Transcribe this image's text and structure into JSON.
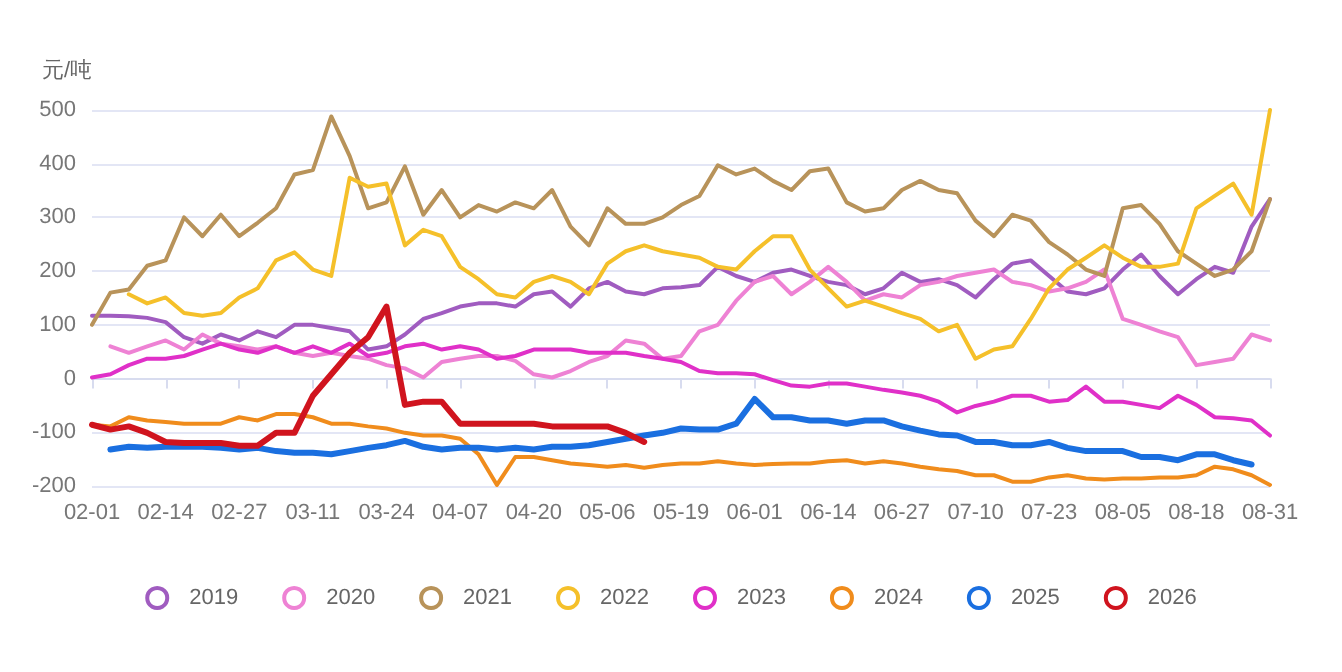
{
  "chart_data": {
    "type": "line",
    "ylabel": "元/吨",
    "ylim": [
      -200,
      500
    ],
    "yticks": [
      -200,
      -100,
      0,
      100,
      200,
      300,
      400,
      500
    ],
    "grid": "y",
    "legend": "bottom",
    "marker": "none",
    "line_style": "solid",
    "categories": [
      "02-01",
      null,
      null,
      null,
      "02-14",
      null,
      null,
      null,
      "02-27",
      null,
      null,
      null,
      "03-11",
      null,
      null,
      null,
      "03-24",
      null,
      null,
      null,
      "04-07",
      null,
      null,
      null,
      "04-20",
      null,
      null,
      null,
      "05-06",
      null,
      null,
      null,
      "05-19",
      null,
      null,
      null,
      "06-01",
      null,
      null,
      null,
      "06-14",
      null,
      null,
      null,
      "06-27",
      null,
      null,
      null,
      "07-10",
      null,
      null,
      null,
      "07-23",
      null,
      null,
      null,
      "08-05",
      null,
      null,
      null,
      "08-18",
      null,
      null,
      null,
      "08-31"
    ],
    "series": [
      {
        "name": "2019",
        "color": "#a05cc0",
        "values": [
          117,
          117,
          116,
          113,
          105,
          77,
          65,
          82,
          71,
          88,
          77,
          100,
          100,
          94,
          88,
          54,
          60,
          82,
          111,
          122,
          134,
          140,
          140,
          134,
          157,
          162,
          134,
          168,
          180,
          162,
          157,
          168,
          170,
          174,
          208,
          191,
          180,
          197,
          203,
          191,
          180,
          174,
          157,
          168,
          197,
          180,
          185,
          174,
          151,
          185,
          214,
          220,
          191,
          162,
          157,
          168,
          203,
          231,
          191,
          157,
          185,
          208,
          197,
          283,
          334
        ]
      },
      {
        "name": "2020",
        "color": "#ee82d4",
        "values": [
          null,
          60,
          48,
          60,
          71,
          54,
          82,
          65,
          60,
          54,
          60,
          48,
          42,
          48,
          42,
          37,
          25,
          19,
          2,
          31,
          37,
          42,
          42,
          33,
          8,
          2,
          14,
          31,
          42,
          71,
          65,
          37,
          42,
          88,
          100,
          145,
          180,
          191,
          157,
          180,
          208,
          180,
          145,
          157,
          151,
          174,
          180,
          191,
          197,
          203,
          180,
          174,
          162,
          168,
          180,
          203,
          111,
          100,
          88,
          77,
          25,
          31,
          37,
          82,
          71
        ]
      },
      {
        "name": "2021",
        "color": "#b8935a",
        "values": [
          100,
          160,
          166,
          210,
          220,
          300,
          265,
          305,
          265,
          290,
          317,
          380,
          388,
          488,
          414,
          317,
          328,
          395,
          305,
          351,
          300,
          323,
          311,
          328,
          317,
          351,
          283,
          248,
          317,
          288,
          288,
          300,
          323,
          340,
          397,
          380,
          391,
          368,
          351,
          386,
          391,
          328,
          311,
          317,
          351,
          368,
          351,
          345,
          294,
          265,
          305,
          294,
          254,
          231,
          203,
          191,
          317,
          323,
          288,
          237,
          214,
          191,
          203,
          237,
          334
        ]
      },
      {
        "name": "2022",
        "color": "#f5c02a",
        "values": [
          null,
          null,
          157,
          140,
          151,
          122,
          117,
          122,
          151,
          168,
          220,
          235,
          203,
          191,
          374,
          357,
          363,
          248,
          277,
          265,
          208,
          185,
          157,
          151,
          180,
          191,
          180,
          157,
          214,
          237,
          248,
          237,
          231,
          225,
          208,
          203,
          237,
          265,
          265,
          203,
          168,
          134,
          145,
          134,
          122,
          111,
          88,
          100,
          37,
          54,
          60,
          111,
          168,
          203,
          225,
          248,
          225,
          208,
          208,
          214,
          317,
          340,
          363,
          305,
          500
        ]
      },
      {
        "name": "2023",
        "color": "#e030c8",
        "values": [
          2,
          8,
          25,
          37,
          37,
          42,
          54,
          65,
          54,
          48,
          60,
          48,
          60,
          48,
          65,
          42,
          48,
          60,
          65,
          54,
          60,
          54,
          37,
          42,
          54,
          54,
          54,
          48,
          48,
          48,
          42,
          37,
          31,
          14,
          10,
          10,
          8,
          -3,
          -13,
          -15,
          -9,
          -9,
          -15,
          -21,
          -26,
          -32,
          -43,
          -63,
          -51,
          -43,
          -32,
          -32,
          -43,
          -40,
          -15,
          -43,
          -43,
          -49,
          -55,
          -32,
          -49,
          -72,
          -74,
          -78,
          -106
        ]
      },
      {
        "name": "2024",
        "color": "#f08c1c",
        "values": [
          -86,
          -89,
          -72,
          -78,
          -81,
          -84,
          -84,
          -84,
          -72,
          -78,
          -66,
          -66,
          -72,
          -84,
          -84,
          -89,
          -93,
          -101,
          -106,
          -106,
          -112,
          -141,
          -198,
          -146,
          -146,
          -152,
          -158,
          -161,
          -164,
          -161,
          -166,
          -161,
          -158,
          -158,
          -154,
          -158,
          -161,
          -159,
          -158,
          -158,
          -154,
          -152,
          -158,
          -154,
          -158,
          -164,
          -169,
          -172,
          -180,
          -180,
          -192,
          -192,
          -184,
          -180,
          -186,
          -188,
          -186,
          -186,
          -184,
          -184,
          -180,
          -164,
          -169,
          -180,
          -198
        ]
      },
      {
        "name": "2025",
        "color": "#1a6fe0",
        "values": [
          null,
          -132,
          -127,
          -129,
          -127,
          -127,
          -127,
          -129,
          -132,
          -129,
          -135,
          -138,
          -138,
          -141,
          -135,
          -129,
          -124,
          -116,
          -127,
          -132,
          -129,
          -129,
          -132,
          -129,
          -132,
          -127,
          -127,
          -124,
          -118,
          -112,
          -106,
          -101,
          -93,
          -95,
          -95,
          -84,
          -38,
          -72,
          -72,
          -78,
          -78,
          -84,
          -78,
          -78,
          -89,
          -97,
          -104,
          -106,
          -118,
          -118,
          -124,
          -124,
          -118,
          -129,
          -135,
          -135,
          -135,
          -146,
          -146,
          -152,
          -141,
          -141,
          -152,
          -160,
          null
        ]
      },
      {
        "name": "2026",
        "color": "#d0141e",
        "values": [
          -86,
          -95,
          -89,
          -101,
          -118,
          -120,
          -120,
          -120,
          -125,
          -125,
          -101,
          -101,
          -32,
          8,
          48,
          77,
          134,
          -49,
          -43,
          -43,
          -84,
          -84,
          -84,
          -84,
          -84,
          -89,
          -89,
          -89,
          -89,
          -101,
          -118,
          null,
          null,
          null,
          null,
          null,
          null,
          null,
          null,
          null,
          null,
          null,
          null,
          null,
          null,
          null,
          null,
          null,
          null,
          null,
          null,
          null,
          null,
          null,
          null,
          null,
          null,
          null,
          null,
          null,
          null,
          null,
          null,
          null,
          null
        ]
      }
    ]
  }
}
